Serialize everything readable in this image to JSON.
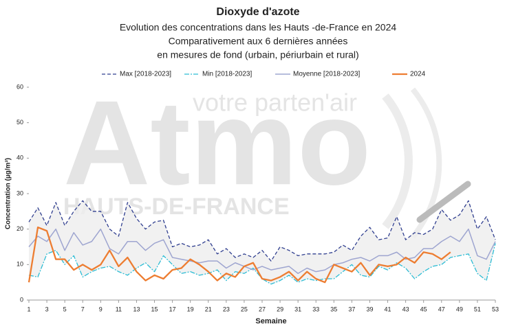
{
  "chart_data": {
    "type": "line",
    "title": "Dioxyde d'azote",
    "subtitle": [
      "Evolution des concentrations dans les Hauts -de-France en 2024",
      "Comparativement aux 6 dernières années",
      "en mesures de fond (urbain, périurbain et rural)"
    ],
    "watermark": [
      "votre parten'air",
      "Atmo",
      "HAUTS-DE-FRANCE"
    ],
    "xlabel": "Semaine",
    "ylabel": "Concentration (µg/m³)",
    "x": [
      1,
      2,
      3,
      4,
      5,
      6,
      7,
      8,
      9,
      10,
      11,
      12,
      13,
      14,
      15,
      16,
      17,
      18,
      19,
      20,
      21,
      22,
      23,
      24,
      25,
      26,
      27,
      28,
      29,
      30,
      31,
      32,
      33,
      34,
      35,
      36,
      37,
      38,
      39,
      40,
      41,
      42,
      43,
      44,
      45,
      46,
      47,
      48,
      49,
      50,
      51,
      52,
      53
    ],
    "xlim": [
      1,
      53
    ],
    "xticks": [
      1,
      3,
      5,
      7,
      9,
      11,
      13,
      15,
      17,
      19,
      21,
      23,
      25,
      27,
      29,
      31,
      33,
      35,
      37,
      39,
      41,
      43,
      45,
      47,
      49,
      51,
      53
    ],
    "ylim": [
      0,
      60
    ],
    "yticks": [
      0,
      10,
      20,
      30,
      40,
      50,
      60
    ],
    "band_color": "#eeeeee",
    "series": [
      {
        "name": "Max [2018-2023]",
        "color": "#2f3e8f",
        "dash": "5,3",
        "width": 1.3,
        "values": [
          22,
          26,
          21,
          27.5,
          21,
          25,
          28,
          25,
          25,
          20,
          18,
          27.5,
          23,
          20,
          22,
          22.5,
          15,
          16,
          15,
          15.5,
          17,
          13,
          14.5,
          12,
          13,
          12,
          14,
          11,
          15,
          14,
          12.5,
          13,
          13,
          13,
          13.5,
          15.5,
          14,
          18,
          20.5,
          17,
          17.5,
          23.5,
          17,
          19,
          18.5,
          20,
          25.5,
          22.5,
          24,
          28,
          20,
          23.5,
          17
        ]
      },
      {
        "name": "Min [2018-2023]",
        "color": "#2bbcd4",
        "dash": "7,2,2,2",
        "width": 1.3,
        "values": [
          7,
          6.5,
          13,
          14,
          10,
          12.5,
          6.5,
          8,
          9,
          9.5,
          8,
          7,
          9,
          10.5,
          8,
          12.5,
          10,
          7.5,
          8,
          7,
          7.5,
          8.5,
          5.5,
          8,
          7.5,
          9,
          6,
          4.5,
          5.5,
          7,
          5,
          6,
          5.5,
          6,
          6,
          8,
          10,
          7,
          6.5,
          9.5,
          8.5,
          10.5,
          9,
          6,
          8,
          9.5,
          10,
          12,
          12.5,
          13,
          7.5,
          5.5,
          16
        ]
      },
      {
        "name": "Moyenne [2018-2023]",
        "color": "#9ea5d0",
        "dash": "none",
        "width": 1.5,
        "values": [
          15,
          18,
          16.5,
          20,
          14,
          19,
          15.5,
          16.5,
          20,
          14.5,
          13,
          16.5,
          16.5,
          14,
          16,
          17,
          12,
          11.5,
          11,
          10.5,
          11,
          11,
          9,
          10.5,
          9.5,
          8.5,
          9.5,
          8.5,
          9,
          9.5,
          7.5,
          9,
          8,
          8.5,
          10,
          10.5,
          11.5,
          12,
          11,
          12.5,
          12.5,
          13.5,
          11.5,
          12,
          14.5,
          14.5,
          16.5,
          18,
          16.5,
          20,
          12.5,
          11.5,
          16.5
        ]
      },
      {
        "name": "2024",
        "color": "#ed7d31",
        "dash": "none",
        "width": 2.3,
        "values": [
          5,
          20.5,
          19.5,
          11.5,
          11.5,
          8.5,
          10,
          8.5,
          10,
          14,
          9.5,
          12,
          8,
          5.5,
          7,
          6,
          8.5,
          9,
          11.5,
          10,
          8,
          5.5,
          7.5,
          6.5,
          9.5,
          10.5,
          6,
          5.5,
          6.5,
          8,
          5.5,
          8,
          6,
          5,
          10,
          9,
          8,
          10.5,
          7,
          10,
          9.5,
          10,
          12,
          10.5,
          13.5,
          13,
          11.5,
          13.5,
          null,
          null,
          null,
          null,
          null
        ]
      }
    ]
  }
}
